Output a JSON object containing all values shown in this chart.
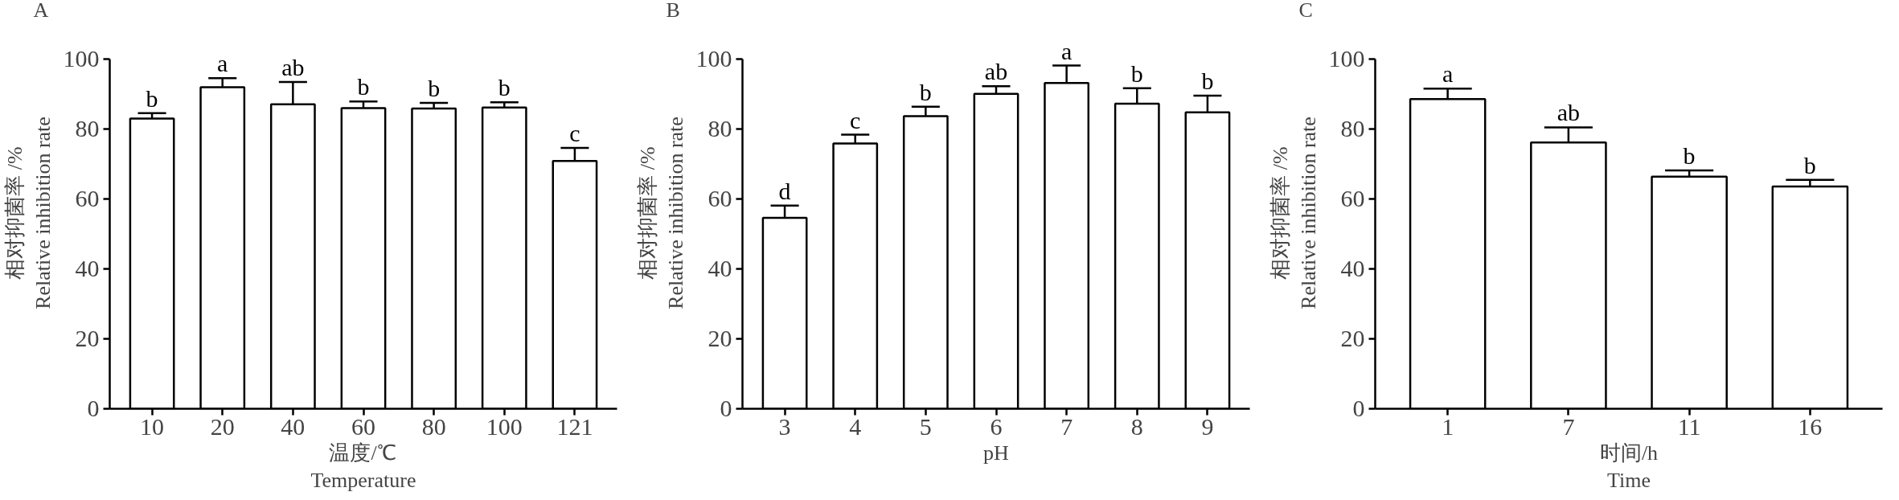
{
  "chart_data": [
    {
      "type": "bar",
      "title": "A",
      "xlabel": "温度/℃\nTemperature",
      "ylabel": "相对抑菌率 /%\nRelative inhibition rate",
      "categories": [
        "10",
        "20",
        "40",
        "60",
        "80",
        "100",
        "121"
      ],
      "values": [
        83,
        92,
        87.1,
        86,
        85.9,
        86.2,
        70.9
      ],
      "errors": [
        1.6,
        2.6,
        6.4,
        1.9,
        1.6,
        1.5,
        3.7
      ],
      "colors": [
        "#ffffff",
        "#ffffff",
        "#ffffff",
        "#ffffff",
        "#ffffff",
        "#ffffff",
        "#ffffff"
      ],
      "ylim": [
        0,
        100
      ],
      "yticks": [
        0,
        20,
        40,
        60,
        80,
        100
      ],
      "grid": false,
      "annotations": [
        {
          "text": "b",
          "x": "10",
          "y": 84.6
        },
        {
          "text": "a",
          "x": "20",
          "y": 94.6
        },
        {
          "text": "ab",
          "x": "40",
          "y": 93.5
        },
        {
          "text": "b",
          "x": "60",
          "y": 87.9
        },
        {
          "text": "b",
          "x": "80",
          "y": 87.5
        },
        {
          "text": "b",
          "x": "100",
          "y": 87.7
        },
        {
          "text": "c",
          "x": "121",
          "y": 74.6
        }
      ]
    },
    {
      "type": "bar",
      "title": "B",
      "xlabel": "pH",
      "ylabel": "相对抑菌率 /%\nRelative inhibition rate",
      "categories": [
        "3",
        "4",
        "5",
        "6",
        "7",
        "8",
        "9"
      ],
      "values": [
        54.6,
        75.9,
        83.7,
        90.1,
        93.2,
        87.3,
        84.8
      ],
      "errors": [
        3.5,
        2.5,
        2.7,
        2.2,
        5,
        4.4,
        4.8
      ],
      "colors": [
        "#ffffff",
        "#ffffff",
        "#ffffff",
        "#ffffff",
        "#ffffff",
        "#ffffff",
        "#ffffff"
      ],
      "ylim": [
        0,
        100
      ],
      "yticks": [
        0,
        20,
        40,
        60,
        80,
        100
      ],
      "grid": false,
      "annotations": [
        {
          "text": "d",
          "x": "3",
          "y": 58.1
        },
        {
          "text": "c",
          "x": "4",
          "y": 78.4
        },
        {
          "text": "b",
          "x": "5",
          "y": 86.4
        },
        {
          "text": "ab",
          "x": "6",
          "y": 92.3
        },
        {
          "text": "a",
          "x": "7",
          "y": 98.2
        },
        {
          "text": "b",
          "x": "8",
          "y": 91.7
        },
        {
          "text": "b",
          "x": "9",
          "y": 89.6
        }
      ]
    },
    {
      "type": "bar",
      "title": "C",
      "xlabel": "时间/h\nTime",
      "ylabel": "相对抑菌率 /%\nRelative inhibition rate",
      "categories": [
        "1",
        "7",
        "11",
        "16"
      ],
      "values": [
        88.6,
        76.2,
        66.4,
        63.6
      ],
      "errors": [
        3,
        4.3,
        1.8,
        1.9
      ],
      "colors": [
        "#ffffff",
        "#ffffff",
        "#ffffff",
        "#ffffff"
      ],
      "ylim": [
        0,
        100
      ],
      "yticks": [
        0,
        20,
        40,
        60,
        80,
        100
      ],
      "grid": false,
      "annotations": [
        {
          "text": "a",
          "x": "1",
          "y": 91.6
        },
        {
          "text": "ab",
          "x": "7",
          "y": 80.5
        },
        {
          "text": "b",
          "x": "11",
          "y": 68.2
        },
        {
          "text": "b",
          "x": "16",
          "y": 65.5
        }
      ]
    }
  ]
}
